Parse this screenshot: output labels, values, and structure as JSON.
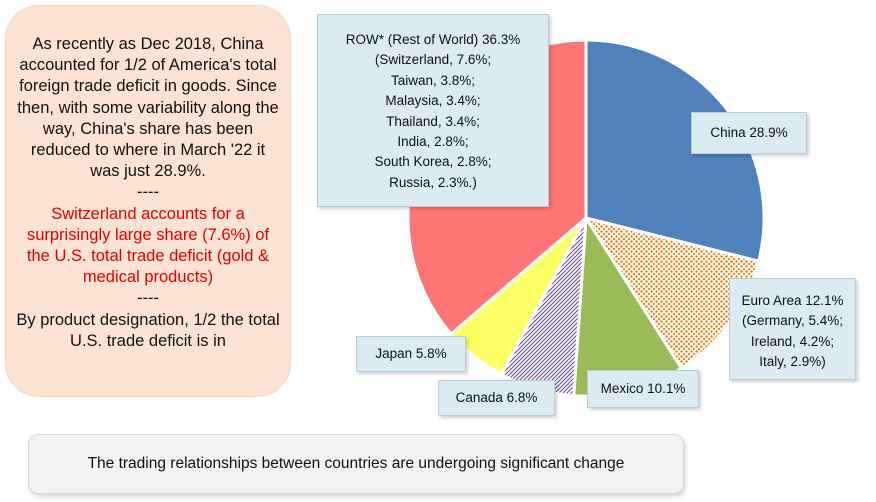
{
  "text_panel": {
    "para1": "As recently as Dec 2018, China accounted for 1/2 of America's total foreign trade deficit in goods. Since then, with some variability along the way, China's share has been reduced to where in March '22 it was just 28.9%.",
    "sep1": "----",
    "para2": "Switzerland accounts for a surprisingly large share (7.6%) of the U.S. total trade deficit (gold & medical products)",
    "sep2": "----",
    "para3": "By product designation, 1/2 the total U.S. trade deficit is in"
  },
  "footer": {
    "text": "The trading  relationships between countries are undergoing significant change"
  },
  "chart_data": {
    "type": "pie",
    "unit": "%",
    "slices": [
      {
        "key": "china",
        "label": "China",
        "value": 28.9,
        "color": "#4f81bd",
        "pattern": "solid",
        "callout": [
          "China 28.9%"
        ]
      },
      {
        "key": "euro",
        "label": "Euro Area",
        "value": 12.1,
        "color": "#f79646",
        "pattern": "dots",
        "callout": [
          "Euro Area 12.1%",
          "(Germany, 5.4%;",
          "Ireland, 4.2%;",
          "Italy, 2.9%)"
        ]
      },
      {
        "key": "mexico",
        "label": "Mexico",
        "value": 10.1,
        "color": "#9bbb59",
        "pattern": "solid",
        "callout": [
          "Mexico 10.1%"
        ]
      },
      {
        "key": "canada",
        "label": "Canada",
        "value": 6.8,
        "color": "#8064a2",
        "pattern": "diag",
        "callout": [
          "Canada 6.8%"
        ]
      },
      {
        "key": "japan",
        "label": "Japan",
        "value": 5.8,
        "color": "#ffff66",
        "pattern": "solid",
        "callout": [
          "Japan 5.8%"
        ]
      },
      {
        "key": "row",
        "label": "ROW* (Rest of World)",
        "value": 36.3,
        "color": "#ff7575",
        "pattern": "solid",
        "callout": [
          "ROW* (Rest of World) 36.3%",
          "(Switzerland, 7.6%;",
          "Taiwan, 3.8%;",
          "Malaysia, 3.4%;",
          "Thailand, 3.4%;",
          "India, 2.8%;",
          "South Korea, 2.8%;",
          "Russia, 2.3%.)"
        ]
      }
    ]
  }
}
